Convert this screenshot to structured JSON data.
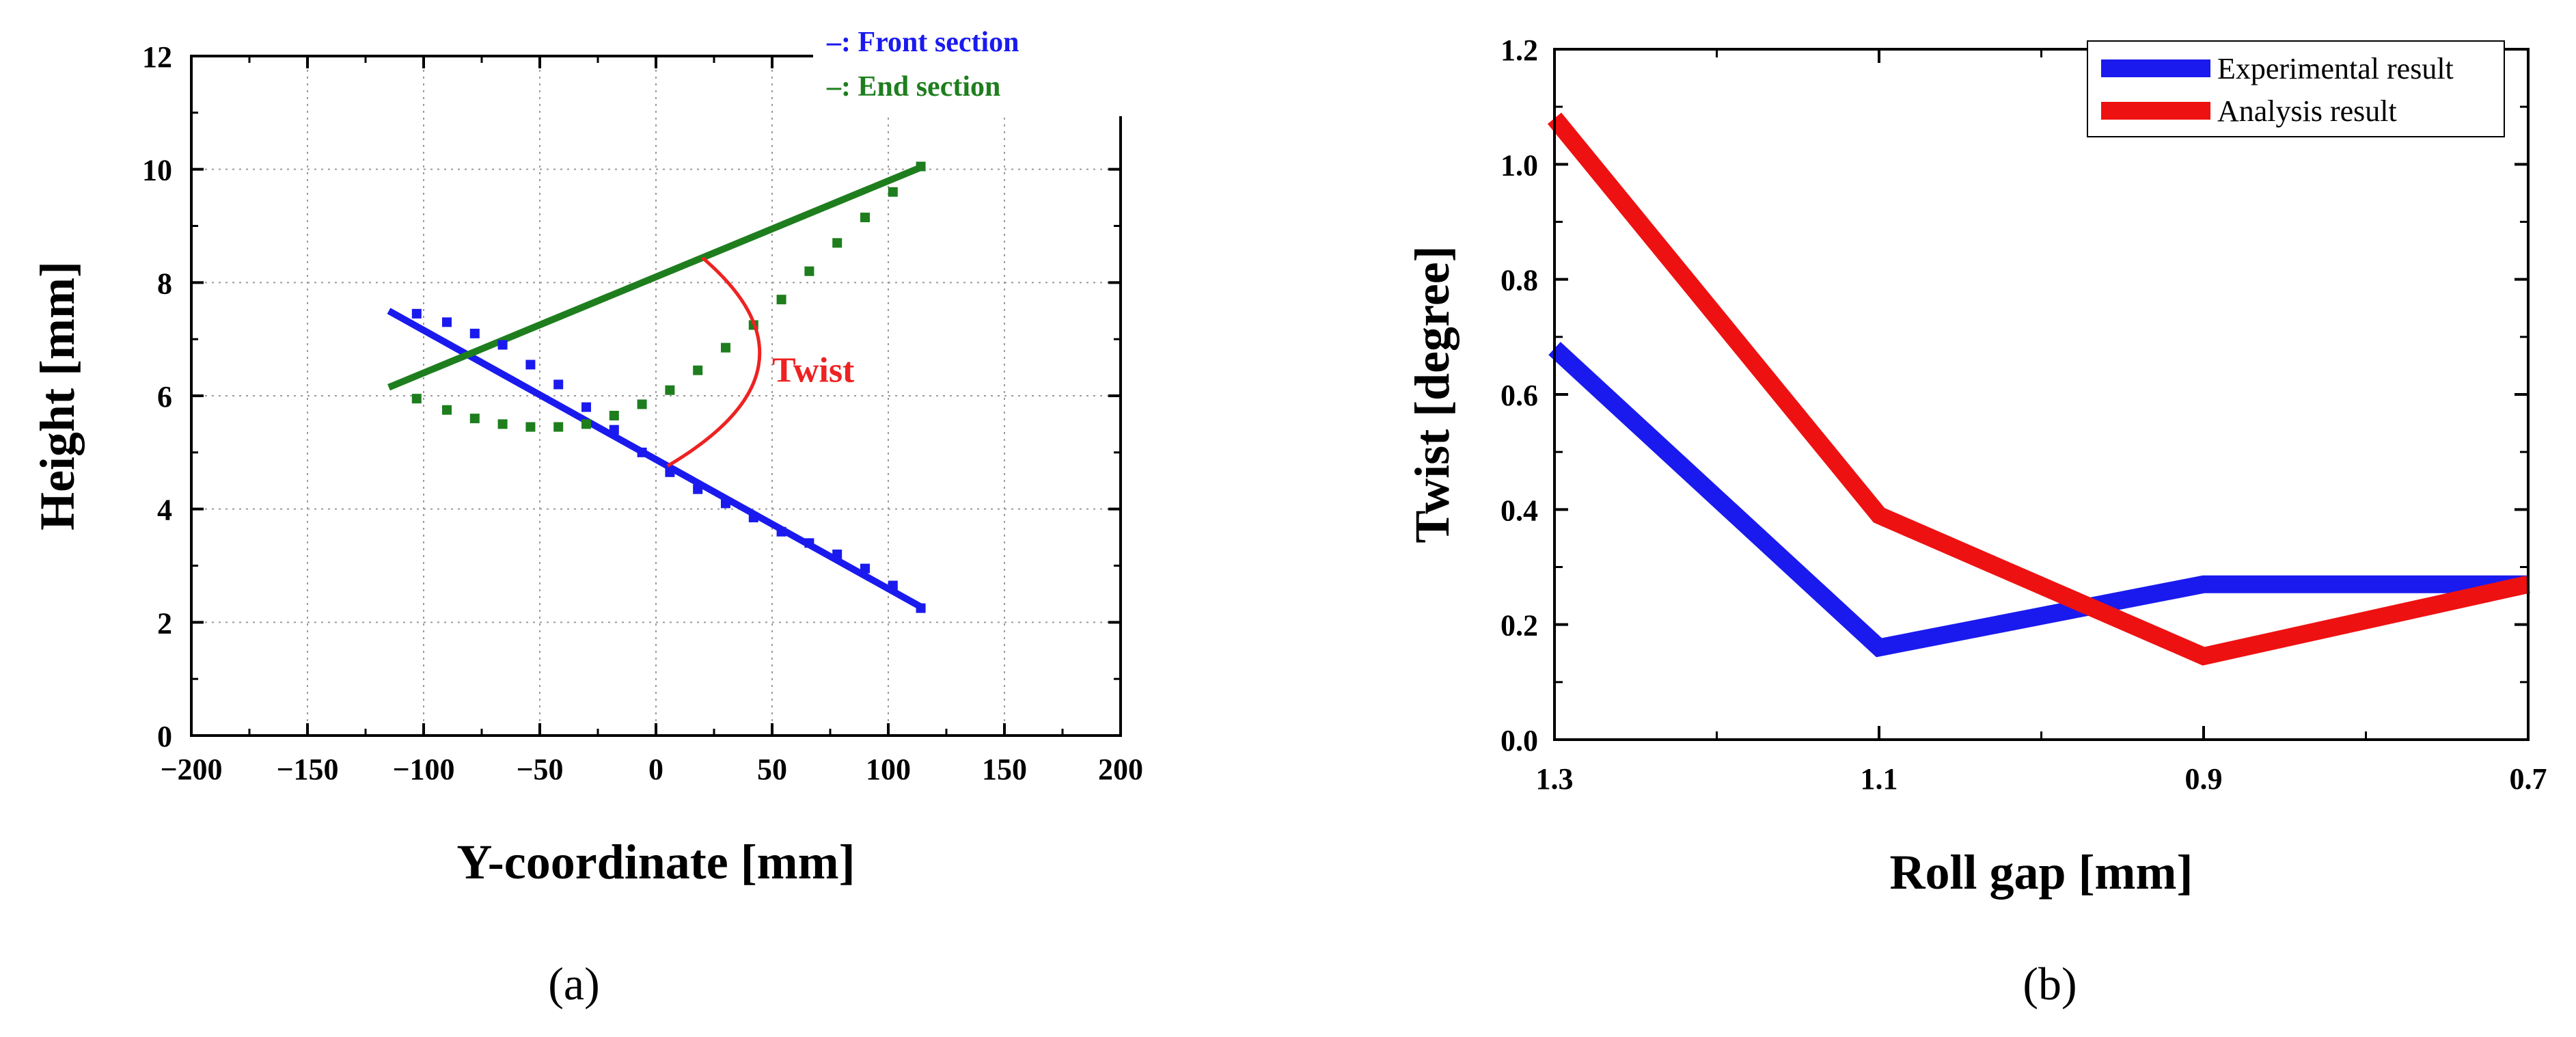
{
  "chart_data": [
    {
      "type": "scatter",
      "panel_label": "(a)",
      "title": "",
      "xlabel": "Y-coordinate [mm]",
      "ylabel": "Height [mm]",
      "xlim": [
        -200,
        200
      ],
      "ylim": [
        0,
        12
      ],
      "xticks": [
        -200,
        -150,
        -100,
        -50,
        0,
        50,
        100,
        150,
        200
      ],
      "yticks": [
        0,
        2,
        4,
        6,
        8,
        10,
        12
      ],
      "grid": true,
      "legend_position": "top-right",
      "annotation": {
        "text": "Twist",
        "color": "#ee2222"
      },
      "series": [
        {
          "name": "Front section",
          "legend_label": "–: Front section",
          "color": "#1a1aee",
          "fit_line": {
            "x": [
              -115,
              115
            ],
            "y": [
              7.5,
              2.25
            ]
          },
          "points": {
            "x": [
              -103,
              -90,
              -78,
              -66,
              -54,
              -42,
              -30,
              -18,
              -6,
              6,
              18,
              30,
              42,
              54,
              66,
              78,
              90,
              102,
              114
            ],
            "y": [
              7.45,
              7.3,
              7.1,
              6.9,
              6.55,
              6.2,
              5.8,
              5.4,
              5.0,
              4.65,
              4.35,
              4.1,
              3.85,
              3.6,
              3.4,
              3.2,
              2.95,
              2.65,
              2.25
            ]
          }
        },
        {
          "name": "End section",
          "legend_label": "–: End section",
          "color": "#1e7e1e",
          "fit_line": {
            "x": [
              -115,
              115
            ],
            "y": [
              6.15,
              10.05
            ]
          },
          "points": {
            "x": [
              -103,
              -90,
              -78,
              -66,
              -54,
              -42,
              -30,
              -18,
              -6,
              6,
              18,
              30,
              42,
              54,
              66,
              78,
              90,
              102,
              114
            ],
            "y": [
              5.95,
              5.75,
              5.6,
              5.5,
              5.45,
              5.45,
              5.5,
              5.65,
              5.85,
              6.1,
              6.45,
              6.85,
              7.25,
              7.7,
              8.2,
              8.7,
              9.15,
              9.6,
              10.05
            ]
          }
        }
      ]
    },
    {
      "type": "line",
      "panel_label": "(b)",
      "title": "",
      "xlabel": "Roll gap [mm]",
      "ylabel": "Twist [degree]",
      "categories": [
        "1.3",
        "1.1",
        "0.9",
        "0.7"
      ],
      "x": [
        1.3,
        1.1,
        0.9,
        0.7
      ],
      "xlim": [
        1.3,
        0.7
      ],
      "ylim": [
        0,
        1.2
      ],
      "yticks": [
        0.0,
        0.2,
        0.4,
        0.6,
        0.8,
        1.0,
        1.2
      ],
      "ytick_labels": [
        "0.0",
        "0.2",
        "0.4",
        "0.6",
        "0.8",
        "1.0",
        "1.2"
      ],
      "grid": false,
      "legend_position": "top-right",
      "series": [
        {
          "name": "Experimental result",
          "color": "#1a1aee",
          "values": [
            0.68,
            0.16,
            0.27,
            0.27
          ]
        },
        {
          "name": "Analysis result",
          "color": "#ee1111",
          "values": [
            1.08,
            0.39,
            0.145,
            0.27
          ]
        }
      ]
    }
  ]
}
